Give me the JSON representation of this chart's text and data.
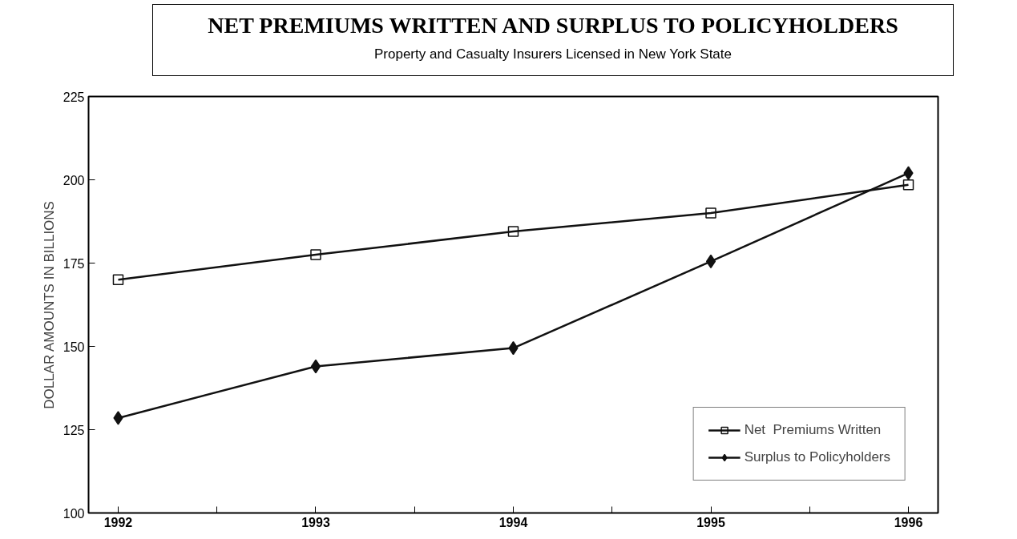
{
  "chart_data": {
    "type": "line",
    "title": "NET PREMIUMS WRITTEN AND SURPLUS TO POLICYHOLDERS",
    "subtitle": "Property and Casualty Insurers Licensed in New York State",
    "ylabel": "DOLLAR AMOUNTS IN BILLIONS",
    "x": [
      1992,
      1993,
      1994,
      1995,
      1996
    ],
    "series": [
      {
        "name": "Net  Premiums Written",
        "color": "#111111",
        "marker": "square",
        "values": [
          170,
          177.5,
          184.5,
          190,
          198.5
        ]
      },
      {
        "name": "Surplus to Policyholders",
        "color": "#111111",
        "marker": "diamond",
        "values": [
          128.5,
          144,
          149.5,
          175.5,
          202
        ]
      }
    ],
    "xlim": [
      1991.85,
      1996.15
    ],
    "xticks": [
      1992,
      {
        "value": 1992.5,
        "label": null
      },
      1993,
      {
        "value": 1993.5,
        "label": null
      },
      1994,
      {
        "value": 1994.5,
        "label": null
      },
      1995,
      {
        "value": 1995.5,
        "label": null
      },
      1996
    ],
    "ylim": [
      100,
      225
    ],
    "yticks": [
      100,
      125,
      150,
      175,
      200,
      225
    ],
    "grid": false,
    "legend": "bottom right",
    "line_style": "solid"
  }
}
